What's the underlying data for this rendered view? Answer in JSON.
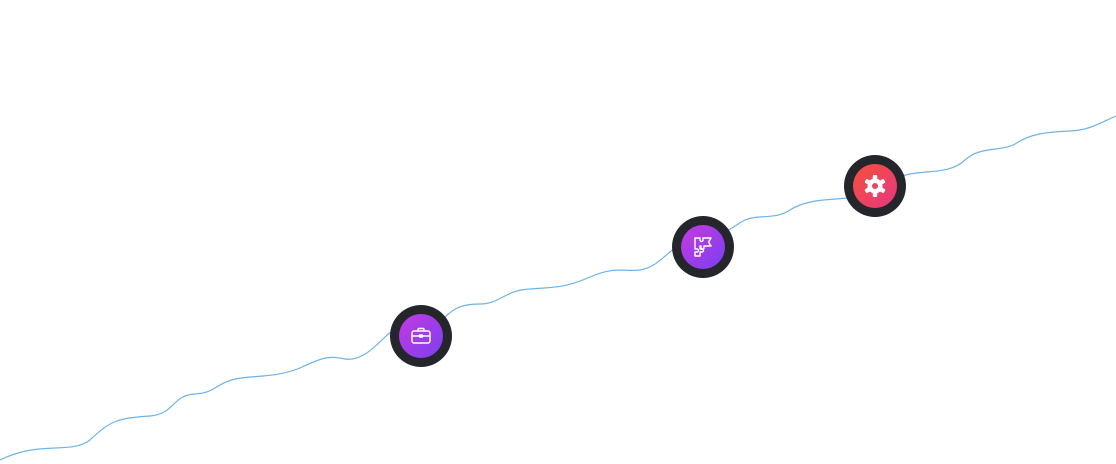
{
  "colors": {
    "line": "#6db3ea",
    "ring": "#25262b",
    "node_briefcase_gradient": [
      "#c43ae0",
      "#7b3ff0"
    ],
    "node_puzzle_gradient": [
      "#c43ae0",
      "#7b3ff0"
    ],
    "node_gear_gradient": [
      "#f5513a",
      "#e63680"
    ]
  },
  "nodes": [
    {
      "icon": "briefcase-icon"
    },
    {
      "icon": "puzzle-icon"
    },
    {
      "icon": "gear-icon"
    }
  ]
}
